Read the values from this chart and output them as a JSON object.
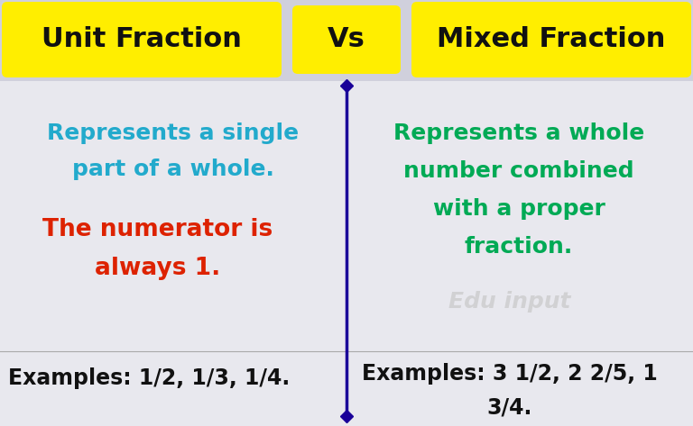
{
  "title_left": "Unit Fraction",
  "title_vs": "Vs",
  "title_right": "Mixed Fraction",
  "title_bg_color": "#FFEE00",
  "title_text_color": "#111111",
  "bg_color": "#D8D8E0",
  "divider_color": "#1A0099",
  "left_text1_line1": "Represents a single",
  "left_text1_line2": "part of a whole.",
  "left_text1_color": "#22AACC",
  "left_text2_line1": "The numerator is",
  "left_text2_line2": "always 1.",
  "left_text2_color": "#DD2200",
  "left_text3": "Examples: 1/2, 1/3, 1/4.",
  "left_text3_color": "#111111",
  "right_text1_line1": "Represents a whole",
  "right_text1_line2": "number combined",
  "right_text1_line3": "with a proper",
  "right_text1_line4": "fraction.",
  "right_text1_color": "#00AA55",
  "right_text2_line1": "Examples: 3 1/2, 2 2/5, 1",
  "right_text2_line2": "3/4.",
  "right_text2_color": "#111111",
  "watermark": "Edu input",
  "watermark_color": "#C8C8C8",
  "fig_width": 7.68,
  "fig_height": 4.73,
  "dpi": 100
}
